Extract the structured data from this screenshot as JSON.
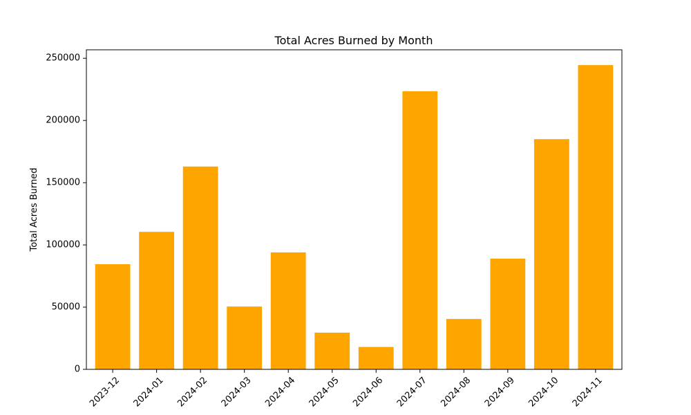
{
  "chart_data": {
    "type": "bar",
    "title": "Total Acres Burned by Month",
    "xlabel": "",
    "ylabel": "Total Acres Burned",
    "categories": [
      "2023-12",
      "2024-01",
      "2024-02",
      "2024-03",
      "2024-04",
      "2024-05",
      "2024-06",
      "2024-07",
      "2024-08",
      "2024-09",
      "2024-10",
      "2024-11"
    ],
    "values": [
      84500,
      110500,
      163000,
      50500,
      94000,
      29500,
      18000,
      223500,
      40500,
      89000,
      185000,
      244500
    ],
    "ylim": [
      0,
      256800
    ],
    "yticks": [
      0,
      50000,
      100000,
      150000,
      200000,
      250000
    ],
    "yticklabels": [
      "0",
      "50000",
      "100000",
      "150000",
      "200000",
      "250000"
    ],
    "bar_color": "#ffa500",
    "grid": false,
    "legend": "none"
  }
}
